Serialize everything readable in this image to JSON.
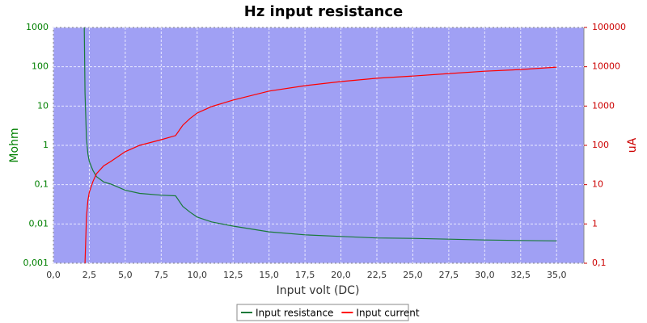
{
  "chart_data": {
    "type": "line",
    "title": "Hz input resistance",
    "x_label": "Input volt (DC)",
    "y_label": "Mohm",
    "y2_label": "uA",
    "x": [
      2.15,
      2.2,
      2.3,
      2.4,
      2.5,
      2.75,
      3.0,
      3.5,
      4,
      5,
      6,
      7.5,
      8.5,
      9,
      9.5,
      10,
      11,
      12.5,
      15,
      17.5,
      20,
      22.5,
      25,
      27.5,
      30,
      32.5,
      35
    ],
    "series": [
      {
        "name": "Input resistance",
        "color": "#1a7a3a",
        "axis": "y",
        "values": [
          1000,
          22,
          1.5,
          0.6,
          0.39,
          0.23,
          0.16,
          0.117,
          0.103,
          0.072,
          0.06,
          0.054,
          0.052,
          0.028,
          0.02,
          0.015,
          0.0113,
          0.0088,
          0.0063,
          0.0053,
          0.0048,
          0.0044,
          0.0043,
          0.0041,
          0.0039,
          0.0038,
          0.0037
        ]
      },
      {
        "name": "Input current",
        "color": "#ff0000",
        "axis": "y2",
        "values": [
          null,
          0.1,
          1.5,
          4,
          6.4,
          12,
          19,
          30,
          39,
          69,
          100,
          139,
          177,
          325,
          480,
          665,
          970,
          1420,
          2400,
          3300,
          4200,
          5100,
          5800,
          6700,
          7700,
          8500,
          9800
        ]
      }
    ],
    "xlim": [
      0,
      36.9
    ],
    "xticks": [
      {
        "value": 0,
        "label": "0,0"
      },
      {
        "value": 2.5,
        "label": "2,5"
      },
      {
        "value": 5,
        "label": "5,0"
      },
      {
        "value": 7.5,
        "label": "7,5"
      },
      {
        "value": 10,
        "label": "10,0"
      },
      {
        "value": 12.5,
        "label": "12,5"
      },
      {
        "value": 15,
        "label": "15,0"
      },
      {
        "value": 17.5,
        "label": "17,5"
      },
      {
        "value": 20,
        "label": "20,0"
      },
      {
        "value": 22.5,
        "label": "22,5"
      },
      {
        "value": 25,
        "label": "25,0"
      },
      {
        "value": 27.5,
        "label": "27,5"
      },
      {
        "value": 30,
        "label": "30,0"
      },
      {
        "value": 32.5,
        "label": "32,5"
      },
      {
        "value": 35,
        "label": "35,0"
      }
    ],
    "ylim": [
      0.001,
      1000
    ],
    "yticks": [
      {
        "value": 0.001,
        "label": "0,001"
      },
      {
        "value": 0.01,
        "label": "0,01"
      },
      {
        "value": 0.1,
        "label": "0,1"
      },
      1,
      10,
      100,
      1000
    ],
    "y2lim": [
      0.1,
      100000
    ],
    "y2ticks": [
      {
        "value": 0.1,
        "label": "0,1"
      },
      1,
      10,
      100,
      1000,
      10000,
      100000
    ],
    "log_y": true,
    "log_y2": true,
    "grid": true,
    "legend": "bottom",
    "plot_color": "#a0a0f4",
    "y_color": "#008000",
    "y2_color": "#cc0000"
  }
}
